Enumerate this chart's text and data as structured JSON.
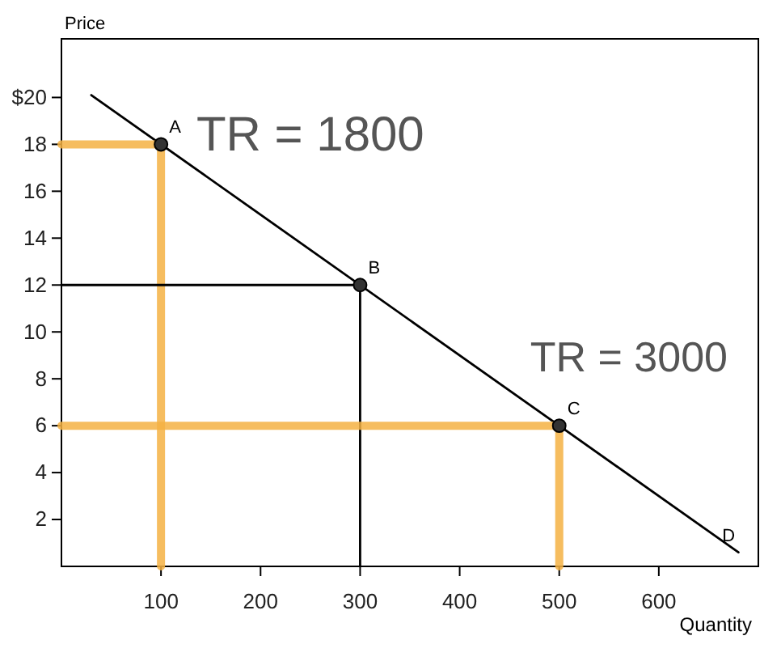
{
  "chart_data": {
    "type": "line",
    "xlabel": "Quantity",
    "ylabel": "Price",
    "xlim": [
      0,
      700
    ],
    "ylim": [
      0,
      22.5
    ],
    "xticks": [
      100,
      200,
      300,
      400,
      500,
      600
    ],
    "yticks": [
      2,
      4,
      6,
      8,
      10,
      12,
      14,
      16,
      18,
      {
        "value": 20,
        "label": "$20"
      }
    ],
    "grid": false,
    "series": [
      {
        "color": "#000000",
        "x": [
          30,
          680
        ],
        "values": [
          20.1,
          0.6
        ],
        "marker": "none"
      },
      {
        "color": "#f4b143",
        "x": [
          0,
          100,
          100
        ],
        "values": [
          18,
          18,
          0
        ],
        "marker": "none"
      },
      {
        "color": "#000000",
        "x": [
          0,
          300,
          300
        ],
        "values": [
          12,
          12,
          0
        ],
        "marker": "none"
      },
      {
        "color": "#f4b143",
        "x": [
          0,
          500,
          500
        ],
        "values": [
          6,
          6,
          0
        ],
        "marker": "none"
      },
      {
        "type": "scatter",
        "color": "#333333",
        "x": [
          100,
          300,
          500
        ],
        "values": [
          18,
          12,
          6
        ],
        "marker": "circle"
      }
    ],
    "annotations": [
      {
        "text": "A",
        "x": 100,
        "y": 18
      },
      {
        "text": "B",
        "x": 300,
        "y": 12
      },
      {
        "text": "C",
        "x": 500,
        "y": 6
      },
      {
        "text": "D",
        "x": 680,
        "y": 0.6
      },
      "TR = 1800",
      "TR = 3000"
    ]
  }
}
